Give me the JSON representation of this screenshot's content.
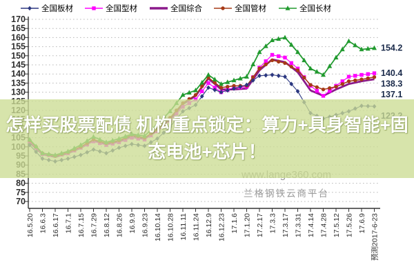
{
  "overlay": {
    "line1": "怎样买股票配债 机构重点锁定：算力+具身智能+固",
    "line2": "态电池+芯片！",
    "band_color": "rgba(204,220,148,0.78)"
  },
  "watermarks": {
    "url": "www.lange360.com",
    "platform": "兰格钢铁云商平台"
  },
  "chart_data": {
    "type": "line",
    "title": "",
    "xlabel": "",
    "ylabel": "",
    "ylim": [
      70,
      170
    ],
    "ytick_step": 5,
    "grid": "horizontal-dotted",
    "legend_position": "top",
    "categories": [
      "16.5.20",
      "16.6.3",
      "16.6.17",
      "16.7.1",
      "16.7.15",
      "16.7.29",
      "16.8.12",
      "16.8.26",
      "16.9.9",
      "16.9.23",
      "16.10.14",
      "16.10.28",
      "16.11.11",
      "16.11.24",
      "16.12.9",
      "16.12.23",
      "17.1.6",
      "17.1.20",
      "17.2.17",
      "17.3.3",
      "17.3.17",
      "17.3.31",
      "17.4.14",
      "17.4.28",
      "17.5.12",
      "17.5.26",
      "17.6.9",
      "预测2017-6-23"
    ],
    "series": [
      {
        "key": "plate",
        "name": "全国板材",
        "color": "#2b3780",
        "marker": "diamond",
        "end_label": "122.2",
        "label_dy": 14,
        "values": [
          101,
          93.5,
          92,
          93.5,
          95.5,
          98.5,
          96.5,
          99.5,
          101.5,
          100.5,
          104.5,
          111,
          119.5,
          123,
          132.5,
          130,
          132,
          134,
          139,
          139.5,
          138.5,
          130.5,
          118.5,
          115.5,
          117.5,
          119.5,
          122.5,
          122.2
        ]
      },
      {
        "key": "section",
        "name": "全国型材",
        "color": "#ff00ff",
        "marker": "square",
        "end_label": "140.4",
        "label_dy": 0,
        "values": [
          103,
          96,
          95,
          96.5,
          99.5,
          103,
          101,
          102.5,
          105,
          104,
          108.5,
          114.5,
          122,
          126,
          135,
          130,
          132.5,
          133,
          143.5,
          150.5,
          149,
          143,
          133.5,
          128,
          133.5,
          138.5,
          139.5,
          140.4
        ]
      },
      {
        "key": "composite",
        "name": "全国综合",
        "color": "#8b1a8b",
        "marker": "none",
        "end_label": "137.1",
        "label_dy": 22,
        "values": [
          102.5,
          96,
          94.5,
          96.5,
          99.5,
          103.5,
          101.5,
          103,
          106,
          104.5,
          109,
          115.5,
          123.5,
          128,
          137.5,
          131.5,
          131.5,
          132,
          142,
          148,
          146.5,
          141,
          131,
          128,
          131.5,
          134.5,
          136,
          137.1
        ]
      },
      {
        "key": "pipe",
        "name": "全国管材",
        "color": "#a63a17",
        "marker": "circle",
        "end_label": "138.3",
        "label_dy": 10,
        "values": [
          103.5,
          96.5,
          95,
          97,
          100,
          104,
          102,
          103.5,
          106.5,
          105,
          109.5,
          116,
          124,
          128.5,
          138,
          132.5,
          133.5,
          133.5,
          143,
          147.5,
          146,
          142,
          134,
          131.5,
          133,
          136,
          137,
          138.3
        ]
      },
      {
        "key": "long",
        "name": "全国长材",
        "color": "#219a2f",
        "marker": "triangle",
        "end_label": "154.2",
        "label_dy": 0,
        "values": [
          104,
          96.5,
          95.5,
          97.5,
          101,
          105.5,
          102.5,
          104.5,
          107,
          106,
          112.5,
          119.5,
          128.5,
          131,
          139.5,
          134.5,
          136.5,
          138.5,
          152,
          158.5,
          160,
          152,
          143,
          139.5,
          149,
          158,
          153.5,
          154.2
        ]
      }
    ],
    "draw_order": [
      "composite",
      "section",
      "pipe",
      "plate",
      "long"
    ],
    "end_label_color": "#1a2a4a",
    "legend_lefts": [
      30,
      123,
      217,
      310,
      404
    ]
  }
}
